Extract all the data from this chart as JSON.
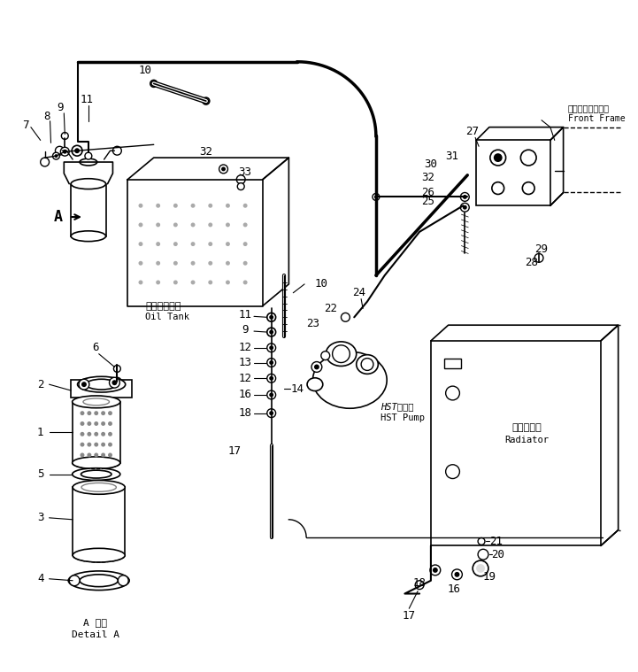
{
  "background": "#ffffff",
  "figsize": [
    7.21,
    7.59
  ],
  "dpi": 100,
  "labels": {
    "oil_tank_jp": "オイルタンク",
    "oil_tank_en": "Oil Tank",
    "hst_pump_jp": "HSTポンプ",
    "hst_pump_en": "HST Pump",
    "radiator_jp": "ラジエータ",
    "radiator_en": "Radiator",
    "front_frame_jp": "フロントフレーム",
    "front_frame_en": "Front Frame",
    "detail_a_jp": "A 樹細",
    "detail_a_en": "Detail A"
  }
}
